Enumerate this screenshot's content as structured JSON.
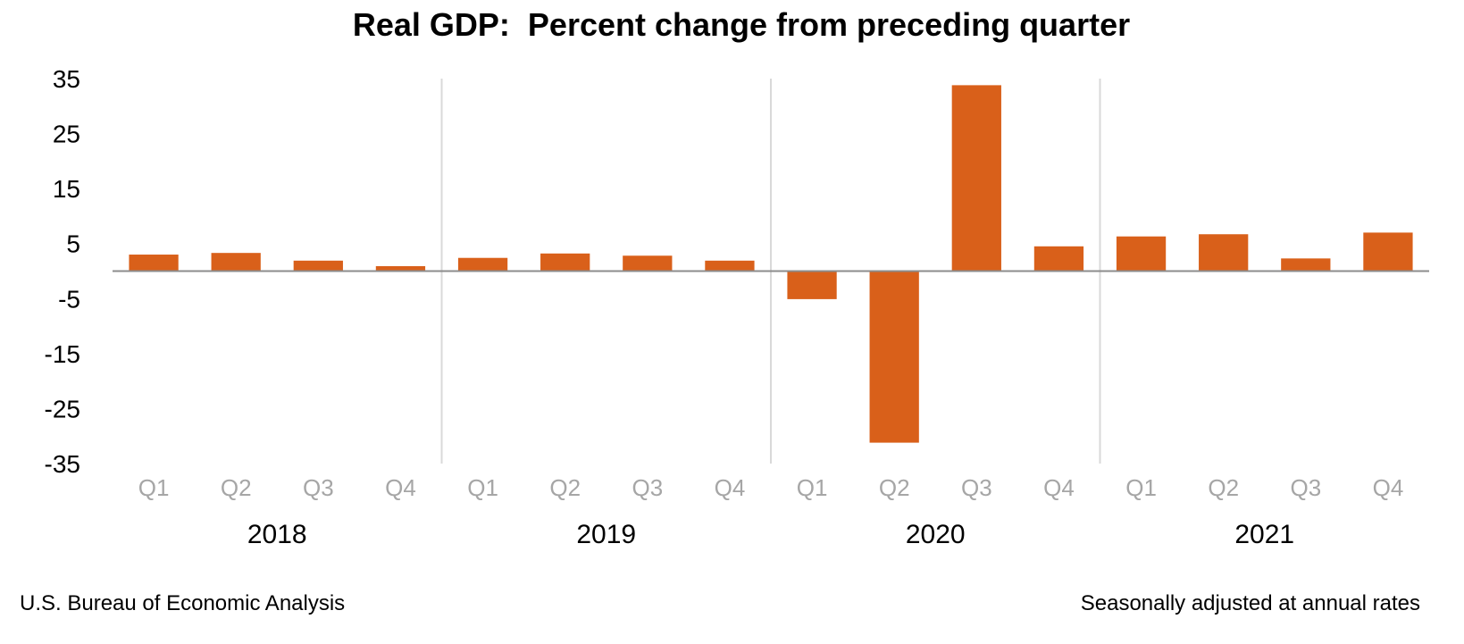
{
  "chart_data": {
    "type": "bar",
    "title": "Real GDP:  Percent change from preceding quarter",
    "xlabel": "",
    "ylabel": "",
    "categories": [
      "Q1",
      "Q2",
      "Q3",
      "Q4",
      "Q1",
      "Q2",
      "Q3",
      "Q4",
      "Q1",
      "Q2",
      "Q3",
      "Q4",
      "Q1",
      "Q2",
      "Q3",
      "Q4"
    ],
    "years": [
      "2018",
      "2019",
      "2020",
      "2021"
    ],
    "values": [
      3.0,
      3.3,
      1.9,
      0.9,
      2.4,
      3.2,
      2.8,
      1.9,
      -5.1,
      -31.2,
      33.8,
      4.5,
      6.3,
      6.7,
      2.3,
      7.0
    ],
    "ylim": [
      -35,
      35
    ],
    "yticks": [
      "35",
      "25",
      "15",
      "5",
      "-5",
      "-15",
      "-25",
      "-35"
    ],
    "grid": false,
    "legend": "none",
    "bar_color": "#d9601a"
  },
  "footer": {
    "source": "U.S. Bureau of Economic Analysis",
    "note": "Seasonally adjusted at annual rates"
  }
}
